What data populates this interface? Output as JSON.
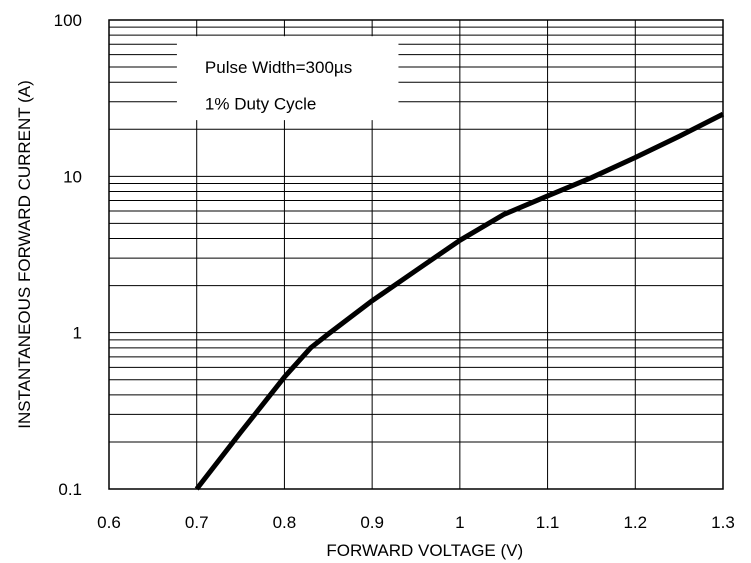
{
  "chart_data": {
    "type": "line",
    "title": "",
    "xlabel": "FORWARD VOLTAGE (V)",
    "ylabel": "INSTANTANEOUS FORWARD CURRENT (A)",
    "xlim": [
      0.6,
      1.3
    ],
    "ylim": [
      0.1,
      100
    ],
    "y_scale": "log",
    "grid": true,
    "x_ticks": [
      "0.6",
      "0.7",
      "0.8",
      "0.9",
      "1",
      "1.1",
      "1.2",
      "1.3"
    ],
    "y_ticks": [
      "0.1",
      "1",
      "10",
      "100"
    ],
    "annotation": [
      "Pulse Width=300µs",
      "1% Duty Cycle"
    ],
    "series": [
      {
        "x": [
          0.7,
          0.75,
          0.8,
          0.83,
          0.85,
          0.9,
          0.95,
          1.0,
          1.05,
          1.1,
          1.15,
          1.2,
          1.25,
          1.3
        ],
        "y": [
          0.1,
          0.23,
          0.52,
          0.8,
          0.98,
          1.6,
          2.5,
          3.9,
          5.7,
          7.5,
          9.8,
          13.2,
          18.0,
          25.0
        ]
      }
    ]
  }
}
